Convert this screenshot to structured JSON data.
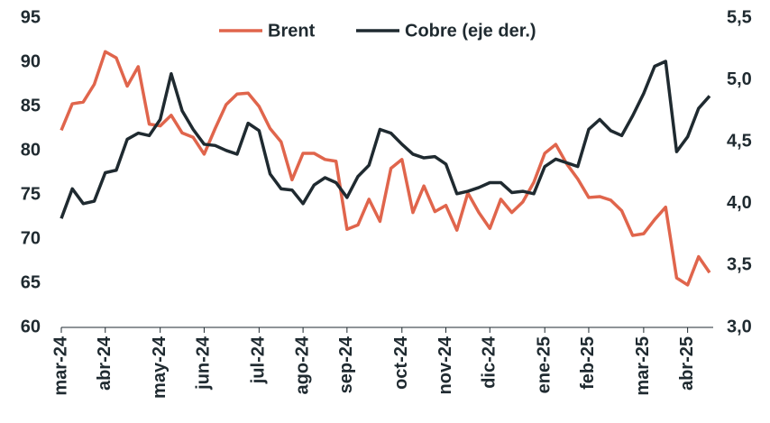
{
  "chart_data": {
    "type": "line",
    "categories": [
      "mar-24",
      null,
      null,
      null,
      "abr-24",
      null,
      null,
      null,
      null,
      "may-24",
      null,
      null,
      null,
      "jun-24",
      null,
      null,
      null,
      null,
      "jul-24",
      null,
      null,
      null,
      "ago-24",
      null,
      null,
      null,
      "sep-24",
      null,
      null,
      null,
      null,
      "oct-24",
      null,
      null,
      null,
      "nov-24",
      null,
      null,
      null,
      "dic-24",
      null,
      null,
      null,
      null,
      "ene-25",
      null,
      null,
      null,
      "feb-25",
      null,
      null,
      null,
      null,
      "mar-25",
      null,
      null,
      null,
      "abr-25",
      null,
      null
    ],
    "series": [
      {
        "name": "Brent",
        "color": "#e0654c",
        "values": [
          82.3,
          85.3,
          85.5,
          87.5,
          91.2,
          90.5,
          87.3,
          89.5,
          83.0,
          82.8,
          84.0,
          82.0,
          81.5,
          79.6,
          82.5,
          85.2,
          86.4,
          86.5,
          85.0,
          82.5,
          81.0,
          76.7,
          79.7,
          79.7,
          79.0,
          78.8,
          71.1,
          71.6,
          74.5,
          72.0,
          78.0,
          79.0,
          73.0,
          76.0,
          73.1,
          73.8,
          71.0,
          75.2,
          73.0,
          71.2,
          74.5,
          73.0,
          74.2,
          76.4,
          79.7,
          80.7,
          78.5,
          76.8,
          74.7,
          74.8,
          74.4,
          73.2,
          70.4,
          70.6,
          72.2,
          73.6,
          65.6,
          64.8,
          68.0,
          66.2
        ]
      },
      {
        "name": "Cobre (eje der.)",
        "color": "#1f2a30",
        "axis": "y2",
        "values": [
          3.88,
          4.12,
          4.0,
          4.02,
          4.25,
          4.27,
          4.52,
          4.57,
          4.55,
          4.68,
          5.05,
          4.75,
          4.6,
          4.48,
          4.47,
          4.43,
          4.4,
          4.65,
          4.59,
          4.24,
          4.12,
          4.11,
          4.0,
          4.15,
          4.21,
          4.17,
          4.05,
          4.22,
          4.31,
          4.6,
          4.57,
          4.48,
          4.4,
          4.37,
          4.38,
          4.32,
          4.08,
          4.1,
          4.13,
          4.17,
          4.17,
          4.09,
          4.1,
          4.08,
          4.3,
          4.36,
          4.33,
          4.3,
          4.6,
          4.68,
          4.59,
          4.55,
          4.71,
          4.89,
          5.11,
          5.15,
          4.42,
          4.54,
          4.77,
          4.87
        ]
      }
    ],
    "ylim": [
      60,
      95
    ],
    "yticks": [
      60,
      65,
      70,
      75,
      80,
      85,
      90,
      95
    ],
    "y2lim": [
      3.0,
      5.5
    ],
    "y2ticks": [
      {
        "value": 3.0,
        "label": "3,0"
      },
      {
        "value": 3.5,
        "label": "3,5"
      },
      {
        "value": 4.0,
        "label": "4,0"
      },
      {
        "value": 4.5,
        "label": "4,5"
      },
      {
        "value": 5.0,
        "label": "5,0"
      },
      {
        "value": 5.5,
        "label": "5,5"
      }
    ],
    "legend": "top",
    "grid": false
  }
}
